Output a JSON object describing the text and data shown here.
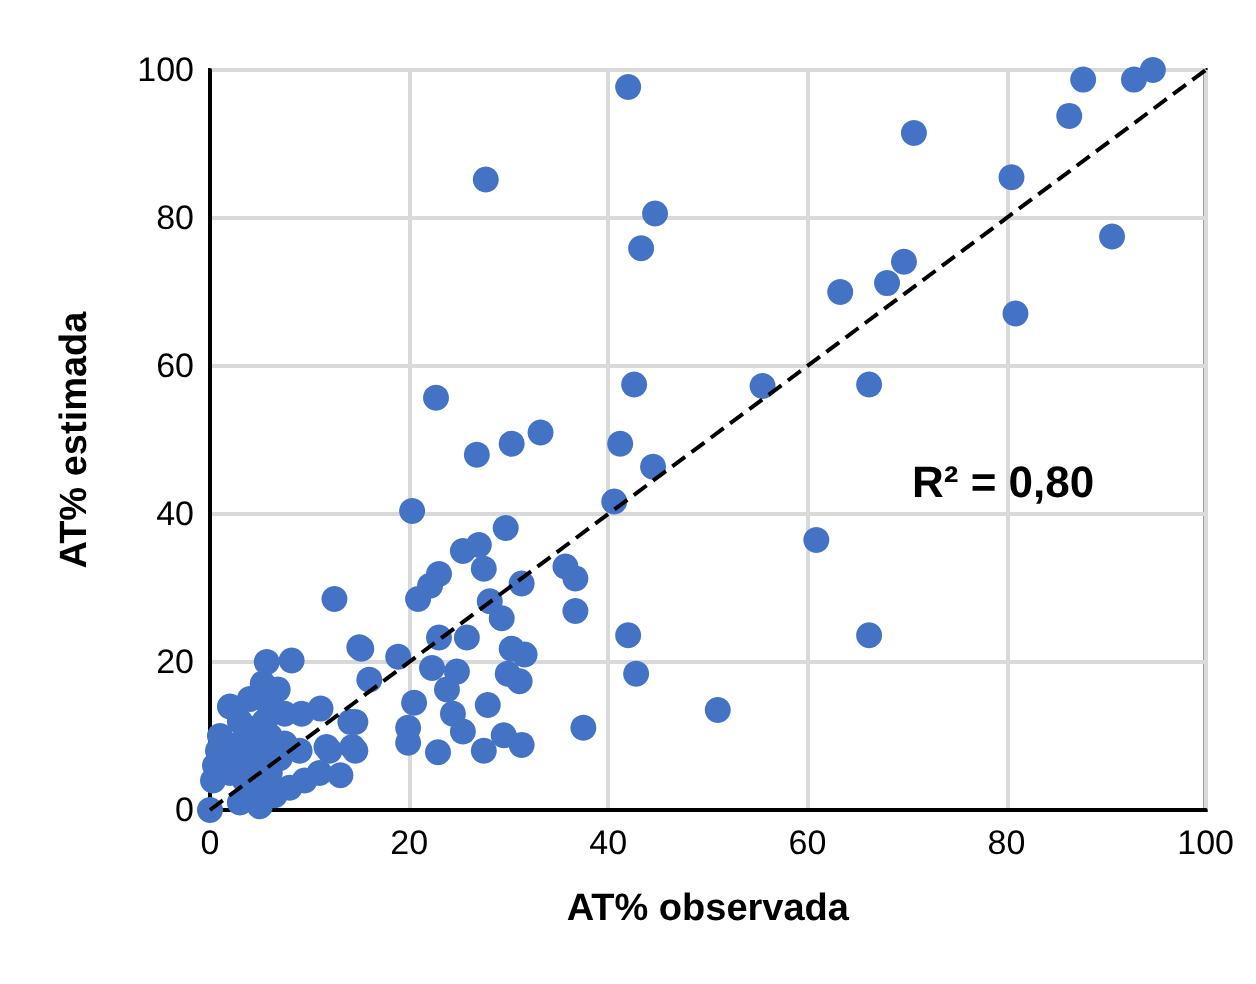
{
  "chart_data": {
    "type": "scatter",
    "xlabel": "AT% observada",
    "ylabel": "AT% estimada",
    "xlim": [
      0,
      100
    ],
    "ylim": [
      0,
      100
    ],
    "xticks": [
      0,
      20,
      40,
      60,
      80,
      100
    ],
    "yticks": [
      0,
      20,
      40,
      60,
      80,
      100
    ],
    "grid": true,
    "marker": "circle",
    "annotations": [
      "R² = 0,80"
    ],
    "series": [
      {
        "color": "#4472c4",
        "x": [
          27.7,
          42,
          44.7,
          43.3,
          70.7,
          87.7,
          92.8,
          94.7,
          86.3,
          80.5,
          90.6,
          69.7,
          68,
          63.3,
          80.9,
          42.6,
          55.5,
          66.2,
          41.2,
          44.5,
          40.6,
          60.9,
          42,
          66.2,
          42.8,
          22.7,
          26.8,
          30.3,
          33.2,
          20.3,
          29.7,
          25.4,
          27,
          27.5,
          23,
          22.1,
          20.9,
          31.3,
          35.7,
          36.7,
          36.7,
          28.1,
          29.3,
          51,
          37.5,
          15.2,
          18.9,
          23,
          25.8,
          30.3,
          31.6,
          29.9,
          31.1,
          22.3,
          24.8,
          23.8,
          16,
          27.9,
          20.5,
          19.9,
          19.9,
          24.4,
          25.4,
          22.9,
          27.5,
          29.5,
          31.3,
          14.6,
          14.6,
          12.5,
          15,
          8.2,
          5.7,
          5.3,
          6.8,
          11.1,
          9.2,
          14.1,
          14.3,
          11.7,
          13.1,
          0,
          0.3,
          0.5,
          0.8,
          1,
          2,
          2.5,
          3,
          3,
          3.5,
          4,
          4.5,
          5,
          5,
          5,
          5.5,
          6,
          6,
          6.5,
          7,
          7.5,
          8,
          9,
          9.5,
          11,
          12,
          2,
          3,
          4,
          6,
          7.5
        ],
        "values": [
          85.2,
          97.7,
          80.6,
          75.9,
          91.5,
          98.7,
          98.7,
          100,
          93.8,
          85.5,
          77.5,
          74.1,
          71.2,
          70,
          67.1,
          57.5,
          57.3,
          57.5,
          49.5,
          46.4,
          41.7,
          36.5,
          23.6,
          23.6,
          18.4,
          55.7,
          48,
          49.5,
          51,
          40.4,
          38.1,
          35,
          35.8,
          32.6,
          31.9,
          30.3,
          28.5,
          30.6,
          32.9,
          31.3,
          26.9,
          28.2,
          25.9,
          13.5,
          11.1,
          21.8,
          20.7,
          23.3,
          23.3,
          21.8,
          21,
          18.4,
          17.4,
          19.2,
          18.7,
          16.3,
          17.6,
          14.2,
          14.5,
          11.1,
          9.1,
          13,
          10.6,
          7.8,
          8,
          10.1,
          8.8,
          11.9,
          8,
          28.5,
          22,
          20.2,
          20,
          17.1,
          16.3,
          13.7,
          13,
          11.9,
          8.5,
          8.5,
          4.7,
          0,
          4,
          6,
          8,
          10,
          5,
          7,
          1,
          9,
          4,
          6,
          11,
          0.5,
          3,
          8,
          12,
          5,
          10,
          2,
          7,
          9,
          3,
          8,
          4,
          5,
          8,
          14,
          12,
          15,
          14,
          13
        ]
      },
      {
        "type": "line",
        "color": "#000000",
        "line_style": "dashed",
        "marker": "none",
        "x": [
          0,
          100
        ],
        "values": [
          0,
          100
        ]
      }
    ]
  }
}
